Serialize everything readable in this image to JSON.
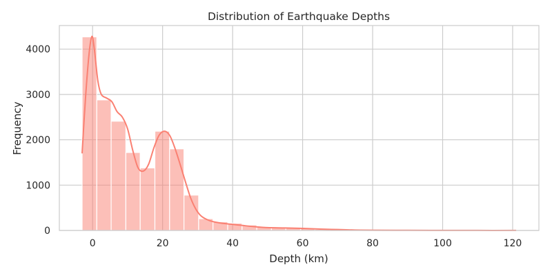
{
  "chart_data": {
    "type": "bar",
    "title": "Distribution of Earthquake Depths",
    "xlabel": "Depth (km)",
    "ylabel": "Frequency",
    "xlim": [
      -9.5,
      127.5
    ],
    "ylim": [
      0,
      4520
    ],
    "xticks": [
      0,
      20,
      40,
      60,
      80,
      100,
      120
    ],
    "yticks": [
      0,
      1000,
      2000,
      3000,
      4000
    ],
    "grid": true,
    "bar_color": "#FA8072",
    "bins": [
      {
        "x0": -3.0,
        "x1": 1.2,
        "count": 4270
      },
      {
        "x0": 1.2,
        "x1": 5.3,
        "count": 2880
      },
      {
        "x0": 5.3,
        "x1": 9.5,
        "count": 2410
      },
      {
        "x0": 9.5,
        "x1": 13.6,
        "count": 1720
      },
      {
        "x0": 13.6,
        "x1": 17.8,
        "count": 1380
      },
      {
        "x0": 17.8,
        "x1": 22.0,
        "count": 2190
      },
      {
        "x0": 22.0,
        "x1": 26.1,
        "count": 1800
      },
      {
        "x0": 26.1,
        "x1": 30.3,
        "count": 780
      },
      {
        "x0": 30.3,
        "x1": 34.4,
        "count": 260
      },
      {
        "x0": 34.4,
        "x1": 38.6,
        "count": 190
      },
      {
        "x0": 38.6,
        "x1": 42.7,
        "count": 160
      },
      {
        "x0": 42.7,
        "x1": 46.9,
        "count": 120
      },
      {
        "x0": 46.9,
        "x1": 51.1,
        "count": 80
      },
      {
        "x0": 51.1,
        "x1": 55.2,
        "count": 60
      },
      {
        "x0": 55.2,
        "x1": 59.4,
        "count": 55
      },
      {
        "x0": 59.4,
        "x1": 63.5,
        "count": 40
      },
      {
        "x0": 63.5,
        "x1": 67.7,
        "count": 25
      },
      {
        "x0": 67.7,
        "x1": 71.9,
        "count": 20
      },
      {
        "x0": 71.9,
        "x1": 76.0,
        "count": 12
      },
      {
        "x0": 76.0,
        "x1": 80.2,
        "count": 8
      },
      {
        "x0": 80.2,
        "x1": 84.3,
        "count": 6
      },
      {
        "x0": 84.3,
        "x1": 88.5,
        "count": 5
      },
      {
        "x0": 88.5,
        "x1": 92.7,
        "count": 4
      },
      {
        "x0": 92.7,
        "x1": 96.8,
        "count": 4
      },
      {
        "x0": 96.8,
        "x1": 101.0,
        "count": 3
      },
      {
        "x0": 101.0,
        "x1": 105.1,
        "count": 3
      },
      {
        "x0": 105.1,
        "x1": 109.3,
        "count": 2
      },
      {
        "x0": 109.3,
        "x1": 113.4,
        "count": 2
      },
      {
        "x0": 113.4,
        "x1": 117.6,
        "count": 2
      },
      {
        "x0": 117.6,
        "x1": 121.8,
        "count": 2
      }
    ],
    "kde": {
      "x": [
        -3,
        -2,
        -1,
        -0.2,
        0.5,
        1.5,
        2.5,
        4,
        5.5,
        7,
        8.5,
        10,
        11.5,
        13,
        14.5,
        16,
        17.5,
        19,
        20.5,
        22,
        23.5,
        25,
        26.5,
        28,
        29.5,
        31,
        33,
        35,
        38,
        42,
        46,
        50,
        55,
        60,
        65,
        70,
        75,
        80,
        90,
        100,
        110,
        121
      ],
      "y": [
        1700,
        2950,
        3900,
        4280,
        4000,
        3300,
        3000,
        2920,
        2840,
        2620,
        2500,
        2240,
        1760,
        1380,
        1310,
        1460,
        1820,
        2100,
        2190,
        2100,
        1820,
        1460,
        1080,
        720,
        470,
        320,
        230,
        185,
        150,
        118,
        85,
        62,
        55,
        45,
        30,
        20,
        10,
        6,
        3,
        2,
        1,
        1
      ]
    }
  }
}
